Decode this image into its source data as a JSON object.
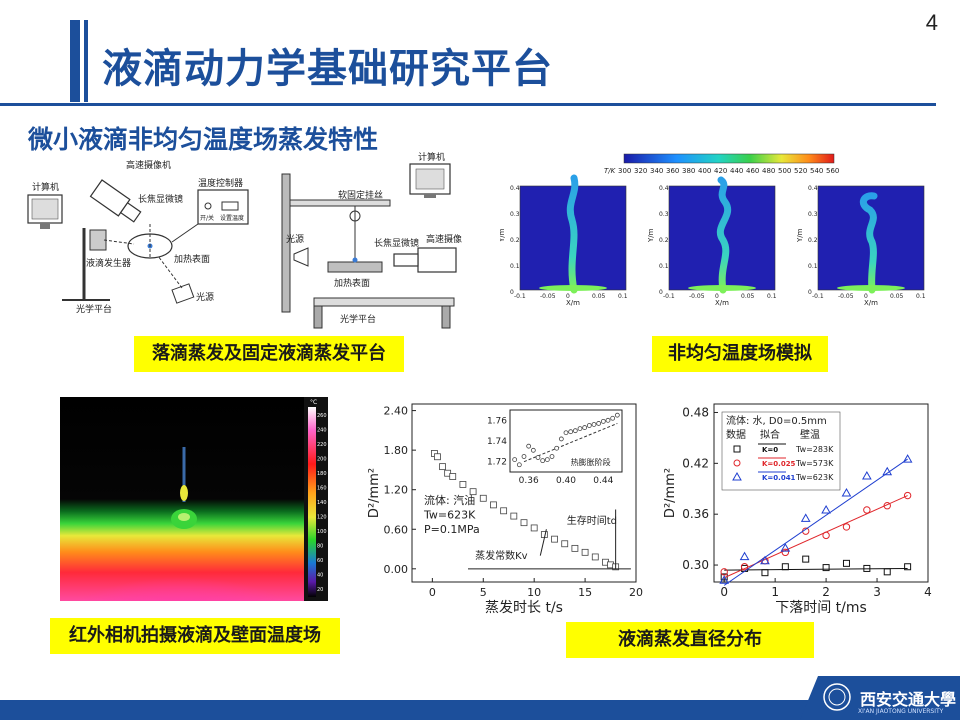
{
  "page_number": "4",
  "title": "液滴动力学基础研究平台",
  "subtitle": "微小液滴非均匀温度场蒸发特性",
  "captions": {
    "setup": "落滴蒸发及固定液滴蒸发平台",
    "simulation": "非均匀温度场模拟",
    "infrared": "红外相机拍摄液滴及壁面温度场",
    "diameter": "液滴蒸发直径分布"
  },
  "setup_labels": {
    "computer1": "计算机",
    "hs_camera1": "高速摄像机",
    "tele_lens1": "长焦显微镜",
    "temp_ctrl": "温度控制器",
    "temp_ctrl_btn1": "开/关",
    "temp_ctrl_btn2": "设置温度",
    "droplet_gen": "液滴发生器",
    "heat_surface1": "加热表面",
    "light1": "光源",
    "optical_table1": "光学平台",
    "computer2": "计算机",
    "soft_wire": "软固定挂丝",
    "light2": "光源",
    "tele_lens2": "长焦显微镜",
    "hs_camera2": "高速摄像机",
    "heat_surface2": "加热表面",
    "optical_table2": "光学平台"
  },
  "simulation": {
    "colorbar_label": "T/K",
    "colorbar_ticks": [
      "300",
      "320",
      "340",
      "360",
      "380",
      "400",
      "420",
      "440",
      "460",
      "480",
      "500",
      "520",
      "540",
      "560"
    ],
    "y_ticks": [
      "0.4",
      "0.3",
      "0.2",
      "0.1",
      "0"
    ],
    "x_ticks": [
      "-0.1",
      "-0.05",
      "0",
      "0.05",
      "0.1"
    ],
    "xlabel": "X/m",
    "ylabel": "Y/m"
  },
  "infrared": {
    "unit": "°C",
    "scale_ticks": [
      "260",
      "240",
      "220",
      "200",
      "180",
      "160",
      "140",
      "120",
      "100",
      "80",
      "60",
      "40",
      "20"
    ]
  },
  "chart_data": [
    {
      "type": "scatter",
      "xlabel": "蒸发时长 t/s",
      "ylabel": "D²/mm²",
      "xticks": [
        "0",
        "5",
        "10",
        "15",
        "20"
      ],
      "yticks": [
        "2.40",
        "1.80",
        "1.20",
        "0.60",
        "0.00"
      ],
      "xlim": [
        -2,
        20
      ],
      "ylim": [
        -0.2,
        2.5
      ],
      "series": [
        {
          "x": [
            0.2,
            0.5,
            1.0,
            1.5,
            2.0,
            3.0,
            4.0,
            5.0,
            6.0,
            7.0,
            8.0,
            9.0,
            10.0,
            11.0,
            12.0,
            13.0,
            14.0,
            15.0,
            16.0,
            17.0,
            17.5,
            18.0
          ],
          "values": [
            1.75,
            1.7,
            1.55,
            1.45,
            1.4,
            1.28,
            1.17,
            1.07,
            0.97,
            0.88,
            0.8,
            0.7,
            0.62,
            0.52,
            0.45,
            0.38,
            0.31,
            0.25,
            0.18,
            0.1,
            0.06,
            0.03
          ]
        }
      ],
      "annotations": {
        "fluid": "流体: 汽油",
        "tw": "Tw=623K",
        "p": "P=0.1MPa",
        "survival": "生存时间td",
        "rate": "蒸发常数Kv"
      },
      "inset": {
        "xticks": [
          "0.36",
          "0.40",
          "0.44"
        ],
        "yticks": [
          "1.76",
          "1.74",
          "1.72"
        ],
        "xlim": [
          0.34,
          0.46
        ],
        "ylim": [
          1.71,
          1.77
        ],
        "label": "热膨胀阶段",
        "x": [
          0.345,
          0.35,
          0.355,
          0.36,
          0.365,
          0.37,
          0.375,
          0.38,
          0.385,
          0.39,
          0.395,
          0.4,
          0.405,
          0.41,
          0.415,
          0.42,
          0.425,
          0.43,
          0.435,
          0.44,
          0.445,
          0.45,
          0.455
        ],
        "values": [
          1.722,
          1.717,
          1.725,
          1.735,
          1.731,
          1.724,
          1.721,
          1.722,
          1.725,
          1.733,
          1.742,
          1.748,
          1.749,
          1.75,
          1.752,
          1.753,
          1.755,
          1.756,
          1.757,
          1.759,
          1.76,
          1.762,
          1.765
        ]
      }
    },
    {
      "type": "scatter",
      "xlabel": "下落时间 t/ms",
      "ylabel": "D²/mm²",
      "xticks": [
        "0",
        "1",
        "2",
        "3",
        "4"
      ],
      "yticks": [
        "0.48",
        "0.42",
        "0.36",
        "0.30"
      ],
      "xlim": [
        -0.2,
        4
      ],
      "ylim": [
        0.28,
        0.49
      ],
      "legend_title": "流体: 水, D0=0.5mm",
      "legend_header": [
        "数据",
        "拟合",
        "壁温"
      ],
      "series": [
        {
          "name": "Tw=283K",
          "fit": "K=0",
          "color": "#111111",
          "marker": "square",
          "x": [
            0,
            0.4,
            0.8,
            1.2,
            1.6,
            2.0,
            2.4,
            2.8,
            3.2,
            3.6
          ],
          "values": [
            0.286,
            0.296,
            0.291,
            0.298,
            0.307,
            0.297,
            0.302,
            0.296,
            0.292,
            0.298
          ],
          "fit_values": [
            0.294,
            0.296
          ]
        },
        {
          "name": "Tw=573K",
          "fit": "K=0.025",
          "color": "#e0262b",
          "marker": "circle",
          "x": [
            0,
            0.4,
            0.8,
            1.2,
            1.6,
            2.0,
            2.4,
            2.8,
            3.2,
            3.6
          ],
          "values": [
            0.292,
            0.298,
            0.305,
            0.315,
            0.34,
            0.335,
            0.345,
            0.365,
            0.37,
            0.382
          ],
          "fit_values": [
            0.285,
            0.382
          ]
        },
        {
          "name": "Tw=623K",
          "fit": "K=0.041",
          "color": "#1f3fd0",
          "marker": "triangle",
          "x": [
            0,
            0.4,
            0.8,
            1.2,
            1.6,
            2.0,
            2.4,
            2.8,
            3.2,
            3.6
          ],
          "values": [
            0.282,
            0.31,
            0.305,
            0.32,
            0.355,
            0.365,
            0.385,
            0.405,
            0.41,
            0.425
          ],
          "fit_values": [
            0.276,
            0.425
          ]
        }
      ]
    }
  ],
  "logo": {
    "text": "西安交通大學",
    "sub": "XI'AN JIAOTONG UNIVERSITY"
  },
  "colors": {
    "brand": "#1c4f9b",
    "caption_bg": "#ffff00"
  }
}
